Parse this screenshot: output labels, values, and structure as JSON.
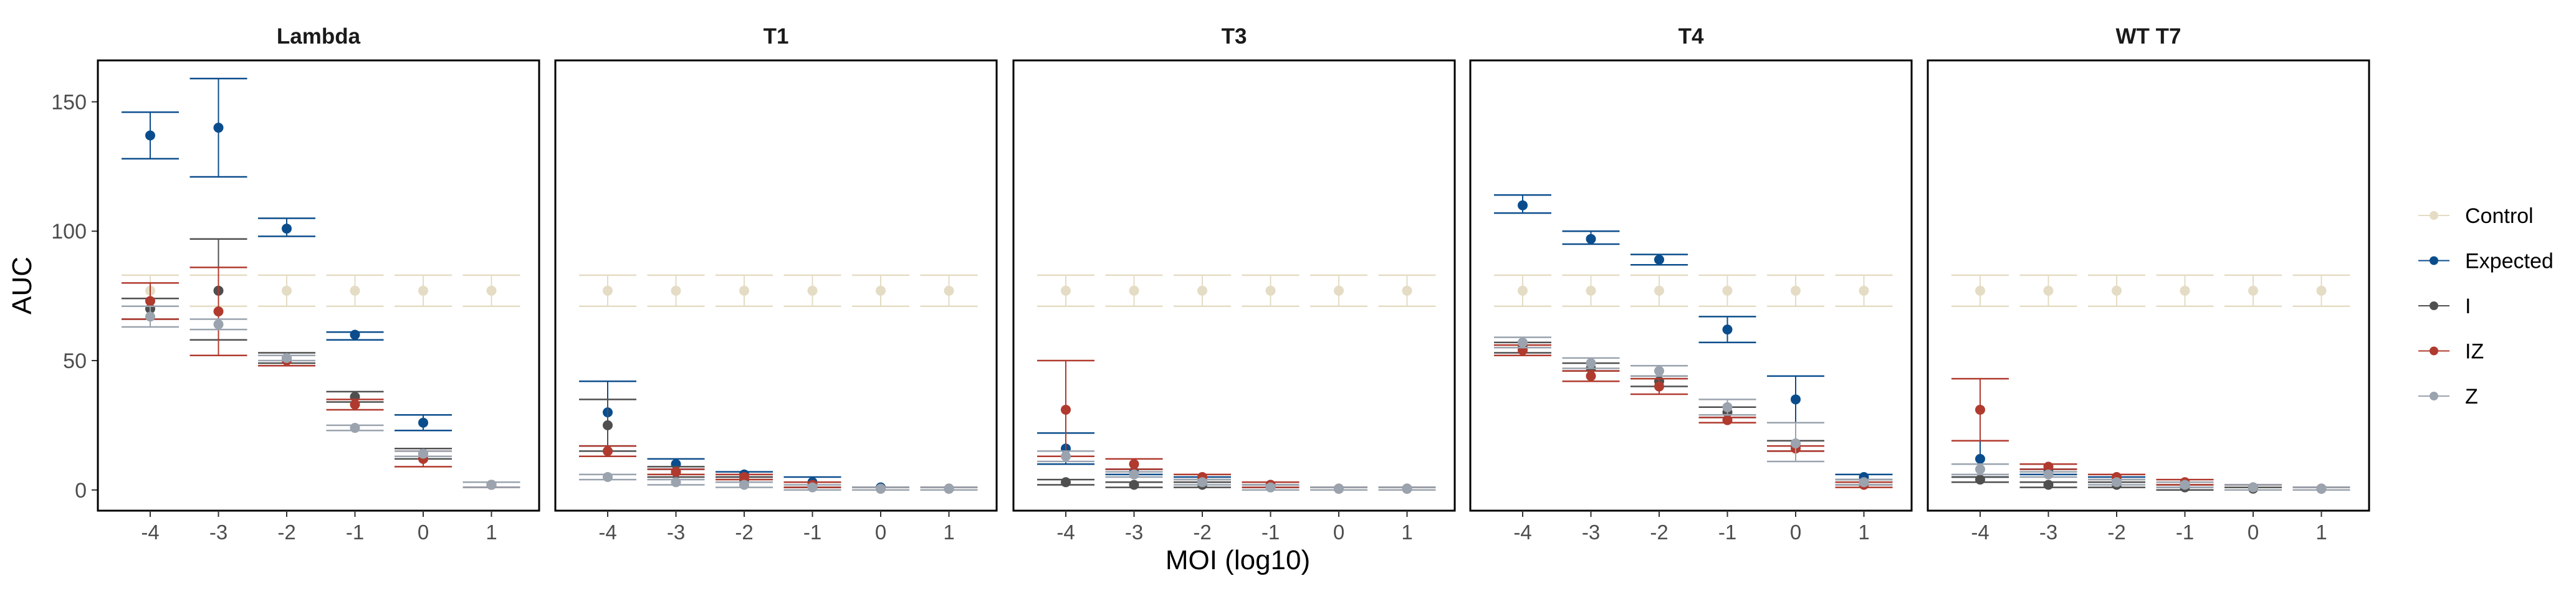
{
  "chart_data": {
    "type": "scatter",
    "xlabel": "MOI (log10)",
    "ylabel": "AUC",
    "x": [
      -4,
      -3,
      -2,
      -1,
      0,
      1
    ],
    "x_tick_labels": [
      "-4",
      "-3",
      "-2",
      "-1",
      "0",
      "1"
    ],
    "ylim": [
      -8,
      166
    ],
    "y_ticks": [
      0,
      50,
      100,
      150
    ],
    "y_tick_labels": [
      "0",
      "50",
      "100",
      "150"
    ],
    "grid": false,
    "legend_position": "right",
    "legend": [
      {
        "name": "Control",
        "color": "#E4DCC4"
      },
      {
        "name": "Expected",
        "color": "#0B4D8C"
      },
      {
        "name": "I",
        "color": "#4F4F4F"
      },
      {
        "name": "IZ",
        "color": "#B03A2E"
      },
      {
        "name": "Z",
        "color": "#9AA3AE"
      }
    ],
    "panels": [
      {
        "title": "Lambda",
        "series": [
          {
            "name": "Control",
            "values": [
              77,
              77,
              77,
              77,
              77,
              77
            ],
            "lower": [
              71,
              71,
              71,
              71,
              71,
              71
            ],
            "upper": [
              83,
              83,
              83,
              83,
              83,
              83
            ]
          },
          {
            "name": "Expected",
            "values": [
              137,
              140,
              101,
              60,
              26,
              2
            ],
            "lower": [
              128,
              121,
              98,
              58,
              23,
              1
            ],
            "upper": [
              146,
              159,
              105,
              61,
              29,
              3
            ]
          },
          {
            "name": "I",
            "values": [
              70,
              77,
              51,
              36,
              14,
              2
            ],
            "lower": [
              66,
              58,
              49,
              34,
              12,
              1
            ],
            "upper": [
              74,
              97,
              53,
              38,
              16,
              3
            ]
          },
          {
            "name": "IZ",
            "values": [
              73,
              69,
              50,
              33,
              12,
              2
            ],
            "lower": [
              66,
              52,
              48,
              31,
              9,
              1
            ],
            "upper": [
              80,
              86,
              52,
              35,
              15,
              3
            ]
          },
          {
            "name": "Z",
            "values": [
              67,
              64,
              51,
              24,
              14,
              2
            ],
            "lower": [
              63,
              62,
              50,
              23,
              13,
              1
            ],
            "upper": [
              71,
              66,
              52,
              25,
              15,
              3
            ]
          }
        ]
      },
      {
        "title": "T1",
        "series": [
          {
            "name": "Control",
            "values": [
              77,
              77,
              77,
              77,
              77,
              77
            ],
            "lower": [
              71,
              71,
              71,
              71,
              71,
              71
            ],
            "upper": [
              83,
              83,
              83,
              83,
              83,
              83
            ]
          },
          {
            "name": "Expected",
            "values": [
              30,
              10,
              6,
              3,
              1,
              0.5
            ],
            "lower": [
              17,
              8,
              5,
              1,
              0,
              0
            ],
            "upper": [
              42,
              12,
              7,
              5,
              1,
              1
            ]
          },
          {
            "name": "I",
            "values": [
              25,
              7,
              4,
              2,
              0.5,
              0.5
            ],
            "lower": [
              15,
              5,
              3,
              1,
              0,
              0
            ],
            "upper": [
              35,
              9,
              5,
              3,
              1,
              1
            ]
          },
          {
            "name": "IZ",
            "values": [
              15,
              7,
              5,
              2,
              0.5,
              0.5
            ],
            "lower": [
              13,
              6,
              4,
              1,
              0,
              0
            ],
            "upper": [
              17,
              8,
              6,
              3,
              1,
              1
            ]
          },
          {
            "name": "Z",
            "values": [
              5,
              3,
              2,
              1,
              0.5,
              0.5
            ],
            "lower": [
              4,
              2,
              1,
              0,
              0,
              0
            ],
            "upper": [
              6,
              4,
              3,
              2,
              1,
              1
            ]
          }
        ]
      },
      {
        "title": "T3",
        "series": [
          {
            "name": "Control",
            "values": [
              77,
              77,
              77,
              77,
              77,
              77
            ],
            "lower": [
              71,
              71,
              71,
              71,
              71,
              71
            ],
            "upper": [
              83,
              83,
              83,
              83,
              83,
              83
            ]
          },
          {
            "name": "Expected",
            "values": [
              16,
              7,
              4,
              2,
              0.5,
              0.5
            ],
            "lower": [
              10,
              6,
              3,
              1,
              0,
              0
            ],
            "upper": [
              22,
              8,
              5,
              3,
              1,
              1
            ]
          },
          {
            "name": "I",
            "values": [
              3,
              2,
              2,
              1,
              0.5,
              0.5
            ],
            "lower": [
              2,
              1,
              1,
              0,
              0,
              0
            ],
            "upper": [
              4,
              3,
              3,
              2,
              1,
              1
            ]
          },
          {
            "name": "IZ",
            "values": [
              31,
              10,
              5,
              2,
              0.5,
              0.5
            ],
            "lower": [
              13,
              8,
              4,
              1,
              0,
              0
            ],
            "upper": [
              50,
              12,
              6,
              3,
              1,
              1
            ]
          },
          {
            "name": "Z",
            "values": [
              13,
              6,
              3,
              1,
              0.5,
              0.5
            ],
            "lower": [
              11,
              5,
              2,
              0,
              0,
              0
            ],
            "upper": [
              15,
              7,
              4,
              2,
              1,
              1
            ]
          }
        ]
      },
      {
        "title": "T4",
        "series": [
          {
            "name": "Control",
            "values": [
              77,
              77,
              77,
              77,
              77,
              77
            ],
            "lower": [
              71,
              71,
              71,
              71,
              71,
              71
            ],
            "upper": [
              83,
              83,
              83,
              83,
              83,
              83
            ]
          },
          {
            "name": "Expected",
            "values": [
              110,
              97,
              89,
              62,
              35,
              5
            ],
            "lower": [
              107,
              95,
              87,
              57,
              26,
              4
            ],
            "upper": [
              114,
              100,
              91,
              67,
              44,
              6
            ]
          },
          {
            "name": "I",
            "values": [
              55,
              47,
              42,
              30,
              17,
              3
            ],
            "lower": [
              53,
              46,
              40,
              28,
              15,
              2
            ],
            "upper": [
              57,
              49,
              44,
              32,
              19,
              4
            ]
          },
          {
            "name": "IZ",
            "values": [
              54,
              44,
              40,
              27,
              16,
              2
            ],
            "lower": [
              52,
              42,
              37,
              26,
              15,
              1
            ],
            "upper": [
              56,
              46,
              43,
              28,
              17,
              3
            ]
          },
          {
            "name": "Z",
            "values": [
              57,
              49,
              46,
              32,
              18,
              3
            ],
            "lower": [
              55,
              47,
              44,
              29,
              11,
              2
            ],
            "upper": [
              59,
              51,
              48,
              35,
              26,
              4
            ]
          }
        ]
      },
      {
        "title": "WT T7",
        "series": [
          {
            "name": "Control",
            "values": [
              77,
              77,
              77,
              77,
              77,
              77
            ],
            "lower": [
              71,
              71,
              71,
              71,
              71,
              71
            ],
            "upper": [
              83,
              83,
              83,
              83,
              83,
              83
            ]
          },
          {
            "name": "Expected",
            "values": [
              12,
              7,
              4,
              2,
              1,
              0.5
            ],
            "lower": [
              5,
              6,
              3,
              1,
              0,
              0
            ],
            "upper": [
              19,
              8,
              5,
              3,
              2,
              1
            ]
          },
          {
            "name": "I",
            "values": [
              4,
              2,
              2,
              1,
              0.5,
              0.5
            ],
            "lower": [
              3,
              1,
              1,
              0,
              0,
              0
            ],
            "upper": [
              5,
              3,
              3,
              2,
              1,
              1
            ]
          },
          {
            "name": "IZ",
            "values": [
              31,
              9,
              5,
              3,
              1,
              0.5
            ],
            "lower": [
              19,
              8,
              4,
              2,
              0,
              0
            ],
            "upper": [
              43,
              10,
              6,
              4,
              2,
              1
            ]
          },
          {
            "name": "Z",
            "values": [
              8,
              6,
              3,
              2,
              1,
              0.5
            ],
            "lower": [
              6,
              5,
              2,
              1,
              0,
              0
            ],
            "upper": [
              10,
              7,
              4,
              3,
              2,
              1
            ]
          }
        ]
      }
    ]
  }
}
